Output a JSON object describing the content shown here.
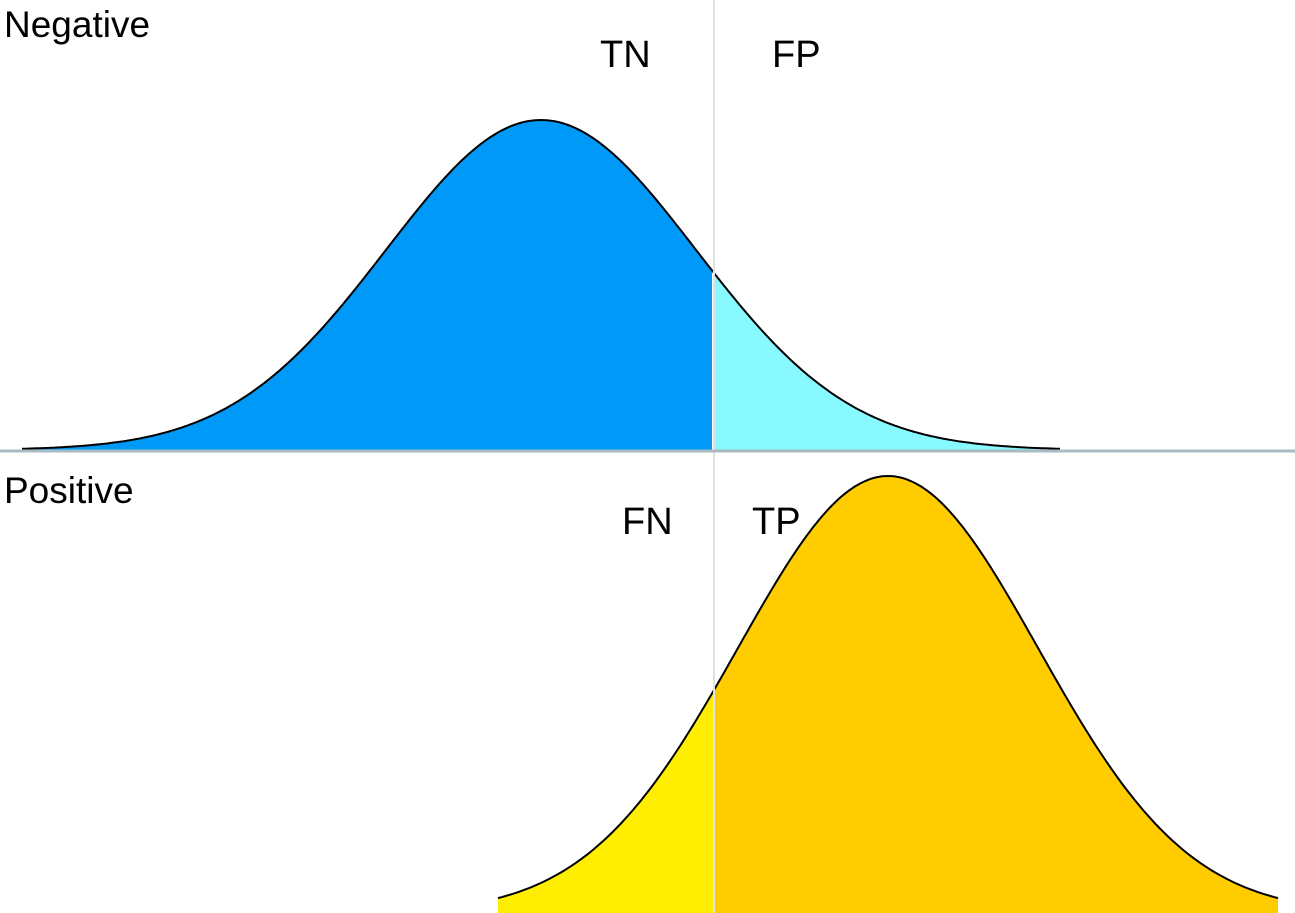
{
  "panels": {
    "negative": {
      "title": "Negative",
      "left_label": "TN",
      "right_label": "FP",
      "left_color": "#0099f8",
      "right_color": "#88f9ff"
    },
    "positive": {
      "title": "Positive",
      "left_label": "FN",
      "right_label": "TP",
      "left_color": "#ffee00",
      "right_color": "#ffcc00"
    }
  },
  "threshold_line_color": "#dde3e6",
  "divider_color": "#a9bcc4"
}
